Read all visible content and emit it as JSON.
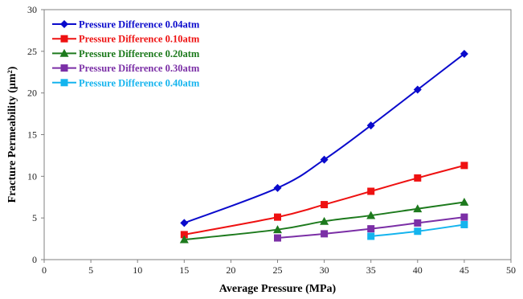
{
  "chart_data": {
    "type": "line",
    "title": "",
    "xlabel": "Average Pressure (MPa)",
    "ylabel": "Fracture Permeability  (μm²)",
    "xlim": [
      0,
      50
    ],
    "ylim": [
      0,
      30
    ],
    "x_ticks": [
      "0",
      "5",
      "10",
      "15",
      "20",
      "25",
      "30",
      "35",
      "40",
      "45",
      "50"
    ],
    "y_ticks": [
      "0",
      "5",
      "10",
      "15",
      "20",
      "25",
      "30"
    ],
    "grid": false,
    "legend_position": "top-left",
    "series": [
      {
        "name": "Pressure Difference 0.04atm",
        "color": "#0a0acc",
        "marker": "diamond",
        "x": [
          15,
          25,
          30,
          35,
          40,
          45
        ],
        "y": [
          4.4,
          8.6,
          12.0,
          16.1,
          20.4,
          24.7
        ]
      },
      {
        "name": "Pressure Difference 0.10atm",
        "color": "#ee1111",
        "marker": "square",
        "x": [
          15,
          25,
          30,
          35,
          40,
          45
        ],
        "y": [
          3.0,
          5.1,
          6.6,
          8.2,
          9.8,
          11.3
        ]
      },
      {
        "name": "Pressure Difference 0.20atm",
        "color": "#1d7a1d",
        "marker": "triangle",
        "x": [
          15,
          25,
          30,
          35,
          40,
          45
        ],
        "y": [
          2.4,
          3.6,
          4.6,
          5.3,
          6.1,
          6.9
        ]
      },
      {
        "name": "Pressure Difference 0.30atm",
        "color": "#7b2fa6",
        "marker": "square",
        "x": [
          25,
          30,
          35,
          40,
          45
        ],
        "y": [
          2.6,
          3.1,
          3.7,
          4.4,
          5.1
        ]
      },
      {
        "name": "Pressure Difference 0.40atm",
        "color": "#14b4ee",
        "marker": "square",
        "x": [
          35,
          40,
          45
        ],
        "y": [
          2.8,
          3.4,
          4.2
        ]
      }
    ]
  }
}
